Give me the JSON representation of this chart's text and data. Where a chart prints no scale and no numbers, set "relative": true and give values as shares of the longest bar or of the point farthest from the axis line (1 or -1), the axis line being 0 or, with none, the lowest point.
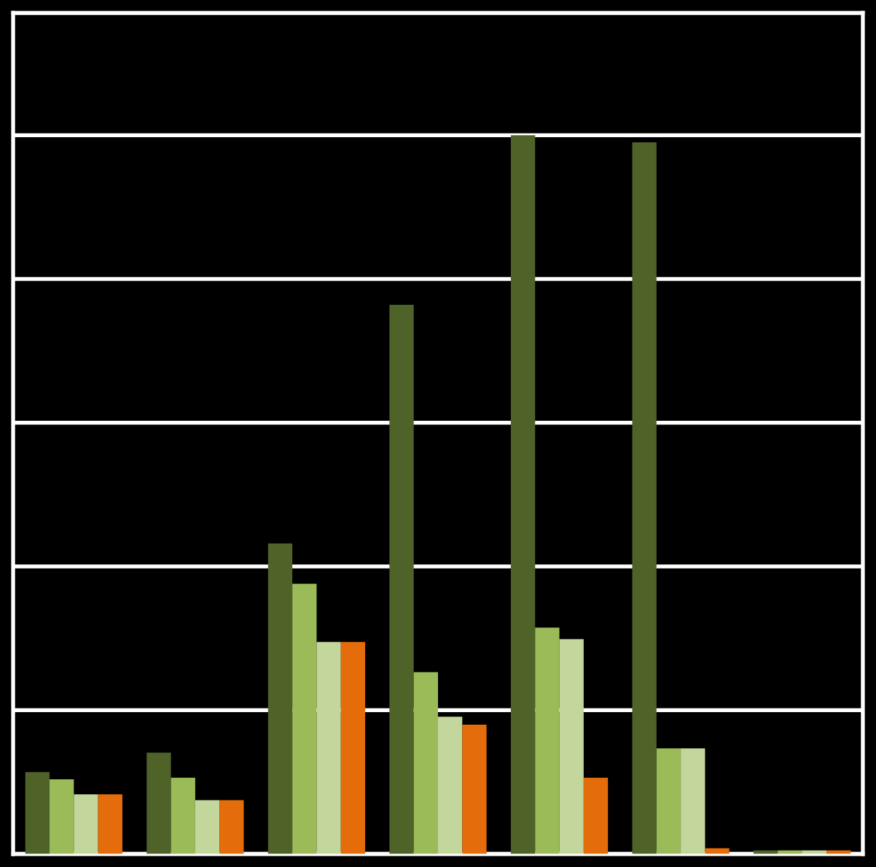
{
  "chart_data": {
    "type": "bar",
    "relative": true,
    "grid": "y",
    "categories": [
      null,
      null,
      null,
      null,
      null,
      null,
      null
    ],
    "series": [
      {
        "color": "#4f6228",
        "values": [
          0.114,
          0.141,
          0.432,
          0.764,
          1.0,
          0.99,
          0.005
        ]
      },
      {
        "color": "#9bbb59",
        "values": [
          0.104,
          0.106,
          0.376,
          0.253,
          0.315,
          0.147,
          0.005
        ]
      },
      {
        "color": "#c3d69b",
        "values": [
          0.083,
          0.075,
          0.295,
          0.191,
          0.299,
          0.147,
          0.005
        ]
      },
      {
        "color": "#e46c0a",
        "values": [
          0.083,
          0.075,
          0.295,
          0.18,
          0.106,
          0.008,
          0.005
        ]
      }
    ]
  }
}
